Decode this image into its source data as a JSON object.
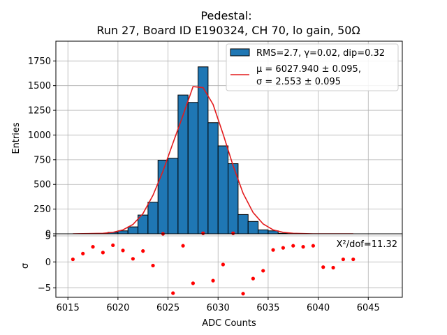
{
  "chart_data": {
    "type": "bar",
    "title": "Pedestal:",
    "subtitle": "Run 27, Board ID E190324, CH 70, lo gain, 50Ω",
    "xlabel": "ADC Counts",
    "ylabel_top": "Entries",
    "ylabel_bottom": "σ",
    "xlim": [
      6013.8,
      6048.4
    ],
    "ylim_top": [
      0,
      1950
    ],
    "ylim_bottom": [
      -6.8,
      5.4
    ],
    "x_ticks": [
      "6015",
      "6020",
      "6025",
      "6030",
      "6035",
      "6040",
      "6045"
    ],
    "x_tick_values": [
      6015,
      6020,
      6025,
      6030,
      6035,
      6040,
      6045
    ],
    "y_ticks_top": [
      "0",
      "250",
      "500",
      "750",
      "1000",
      "1250",
      "1500",
      "1750"
    ],
    "y_tick_values_top": [
      0,
      250,
      500,
      750,
      1000,
      1250,
      1500,
      1750
    ],
    "y_ticks_bottom": [
      "−5",
      "0",
      "5"
    ],
    "y_tick_values_bottom": [
      -5,
      0,
      5
    ],
    "grid": true,
    "legend_position": "top-right",
    "histogram": {
      "name": "RMS=2.7, γ=0.02, dip=0.32",
      "color": "#1f77b4",
      "bin_width": 1,
      "bin_starts": [
        6019,
        6020,
        6021,
        6022,
        6023,
        6024,
        6025,
        6026,
        6027,
        6028,
        6029,
        6030,
        6031,
        6032,
        6033,
        6034,
        6035,
        6036
      ],
      "values": [
        15,
        30,
        70,
        190,
        320,
        745,
        765,
        1405,
        1330,
        1690,
        1125,
        890,
        710,
        195,
        125,
        40,
        30,
        5
      ]
    },
    "fit": {
      "name_line1": "μ = 6027.940 ± 0.095,",
      "name_line2": "σ = 2.553 ± 0.095",
      "color": "#e31a1c",
      "x": [
        6015.5,
        6016.5,
        6017.5,
        6018.5,
        6019.5,
        6020.5,
        6021.5,
        6022.5,
        6023.5,
        6024.5,
        6025.5,
        6026.5,
        6027.5,
        6028.5,
        6029.5,
        6030.5,
        6031.5,
        6032.5,
        6033.5,
        6034.5,
        6035.5,
        6036.5,
        6037.5,
        6038.5,
        6039.5,
        6040.5,
        6041.5,
        6042.5,
        6043.5
      ],
      "y": [
        0,
        1,
        3,
        5,
        15,
        40,
        95,
        205,
        390,
        635,
        920,
        1200,
        1490,
        1480,
        1310,
        1010,
        690,
        410,
        215,
        100,
        40,
        15,
        5,
        2,
        0,
        0,
        0,
        0,
        0
      ]
    },
    "residuals": {
      "color": "#ff0000",
      "annotation": "X²/dof=11.32",
      "x": [
        6015.5,
        6016.5,
        6017.5,
        6018.5,
        6019.5,
        6020.5,
        6021.5,
        6022.5,
        6023.5,
        6024.5,
        6025.5,
        6026.5,
        6027.5,
        6028.5,
        6029.5,
        6030.5,
        6031.5,
        6032.5,
        6033.5,
        6034.5,
        6035.5,
        6036.5,
        6037.5,
        6038.5,
        6039.5,
        6040.5,
        6041.5,
        6042.5,
        6043.5
      ],
      "y": [
        0.5,
        1.6,
        2.9,
        1.8,
        3.2,
        2.2,
        0.6,
        2.1,
        -0.7,
        5.4,
        -6.0,
        3.1,
        -4.1,
        5.5,
        -3.6,
        -0.5,
        5.5,
        -6.1,
        -3.2,
        -1.7,
        2.3,
        2.7,
        3.1,
        2.9,
        3.1,
        -1.0,
        -1.1,
        0.5,
        0.5
      ]
    }
  }
}
